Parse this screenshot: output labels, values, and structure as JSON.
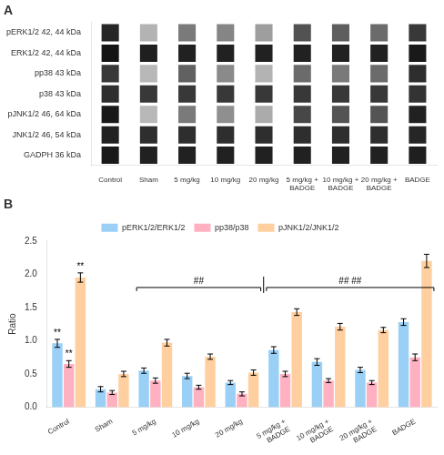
{
  "chart_data": [
    {
      "type": "heatmap",
      "title": "A",
      "x": [
        "Control",
        "Sham",
        "5 mg/kg",
        "10 mg/kg",
        "20 mg/kg",
        "5 mg/kg +\nBADGE",
        "10 mg/kg +\nBADGE",
        "20 mg/kg +\nBADGE",
        "BADGE"
      ],
      "y": [
        "pERK1/2 42, 44 kDa",
        "ERK1/2 42, 44 kDa",
        "pp38 43 kDa",
        "p38 43 kDa",
        "pJNK1/2 46, 64 kDa",
        "JNK1/2 46, 54 kDa",
        "GADPH 36 kDa"
      ],
      "values": [
        [
          0.85,
          0.3,
          0.52,
          0.48,
          0.38,
          0.68,
          0.63,
          0.58,
          0.78
        ],
        [
          0.92,
          0.88,
          0.87,
          0.87,
          0.87,
          0.87,
          0.87,
          0.87,
          0.9
        ],
        [
          0.78,
          0.28,
          0.62,
          0.46,
          0.3,
          0.58,
          0.52,
          0.58,
          0.82
        ],
        [
          0.82,
          0.78,
          0.78,
          0.78,
          0.78,
          0.78,
          0.78,
          0.78,
          0.8
        ],
        [
          0.9,
          0.28,
          0.52,
          0.44,
          0.33,
          0.72,
          0.67,
          0.67,
          0.87
        ],
        [
          0.87,
          0.82,
          0.82,
          0.82,
          0.82,
          0.82,
          0.82,
          0.82,
          0.85
        ],
        [
          0.9,
          0.87,
          0.87,
          0.87,
          0.87,
          0.87,
          0.87,
          0.87,
          0.88
        ]
      ],
      "grid": false
    },
    {
      "type": "bar",
      "title": "B",
      "ylabel": "Ratio",
      "categories": [
        "Control",
        "Sham",
        "5 mg/kg",
        "10 mg/kg",
        "20 mg/kg",
        "5 mg/kg +\nBADGE",
        "10 mg/kg +\nBADGE",
        "20 mg/kg +\nBADGE",
        "BADGE"
      ],
      "series": [
        {
          "name": "pERK1/2/ERK1/2",
          "values": [
            0.96,
            0.27,
            0.55,
            0.47,
            0.37,
            0.86,
            0.68,
            0.56,
            1.28
          ],
          "errors": [
            0.06,
            0.04,
            0.04,
            0.04,
            0.03,
            0.05,
            0.05,
            0.04,
            0.05
          ]
        },
        {
          "name": "pp38/p38",
          "values": [
            0.65,
            0.22,
            0.4,
            0.3,
            0.2,
            0.5,
            0.4,
            0.37,
            0.75
          ],
          "errors": [
            0.05,
            0.03,
            0.04,
            0.03,
            0.03,
            0.04,
            0.03,
            0.03,
            0.05
          ]
        },
        {
          "name": "pJNK1/2/JNK1/2",
          "values": [
            1.95,
            0.5,
            0.97,
            0.76,
            0.52,
            1.43,
            1.21,
            1.16,
            2.2
          ],
          "errors": [
            0.07,
            0.04,
            0.05,
            0.04,
            0.04,
            0.05,
            0.05,
            0.04,
            0.1
          ]
        }
      ],
      "ylim": [
        0,
        2.5
      ],
      "yticks": [
        {
          "value": 0,
          "label": "0.0"
        },
        0.5,
        {
          "value": 1,
          "label": "1.0"
        },
        1.5,
        {
          "value": 2,
          "label": "2.0"
        },
        2.5
      ],
      "grid": false,
      "legend": "top",
      "annotations": [
        {
          "text": "**",
          "series": "pERK1/2/ERK1/2",
          "category": "Control"
        },
        {
          "text": "**",
          "series": "pp38/p38",
          "category": "Control"
        },
        {
          "text": "**",
          "series": "pJNK1/2/JNK1/2",
          "category": "Control"
        }
      ],
      "brackets": [
        {
          "text": "##",
          "from": "5 mg/kg",
          "to": "20 mg/kg",
          "y": 1.8
        },
        {
          "text": "## ##",
          "from": "5 mg/kg +\nBADGE",
          "to": "BADGE",
          "y": 1.8
        }
      ]
    }
  ]
}
